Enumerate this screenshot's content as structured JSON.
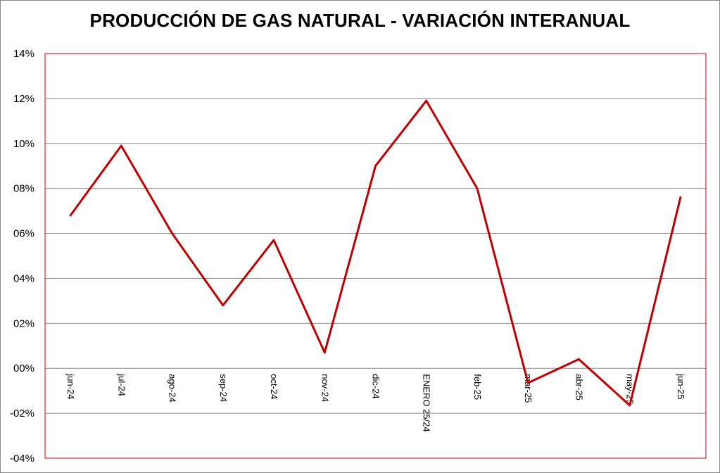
{
  "chart_data": {
    "type": "line",
    "title": "PRODUCCIÓN DE GAS NATURAL - VARIACIÓN INTERANUAL",
    "xlabel": "",
    "ylabel": "",
    "ylim": [
      -0.04,
      0.14
    ],
    "ytick_values": [
      -0.04,
      -0.02,
      0.0,
      0.02,
      0.04,
      0.06,
      0.08,
      0.1,
      0.12,
      0.14
    ],
    "ytick_labels": [
      "-04%",
      "-02%",
      "00%",
      "02%",
      "04%",
      "06%",
      "08%",
      "10%",
      "12%",
      "14%"
    ],
    "grid": true,
    "legend": "none",
    "categories": [
      "jun-24",
      "jul-24",
      "ago-24",
      "sep-24",
      "oct-24",
      "nov-24",
      "dic-24",
      "ENERO 25/24",
      "feb-25",
      "mar-25",
      "abr-25",
      "may-25",
      "jun-25"
    ],
    "series": [
      {
        "values": [
          0.068,
          0.099,
          0.06,
          0.028,
          0.057,
          0.007,
          0.09,
          0.119,
          0.08,
          -0.0065,
          0.004,
          -0.0165,
          0.076
        ],
        "color": "#c00000"
      }
    ],
    "colors": {
      "plot_border": "#cc0000",
      "gridline": "#8c8c8c",
      "line": "#c00000"
    }
  }
}
